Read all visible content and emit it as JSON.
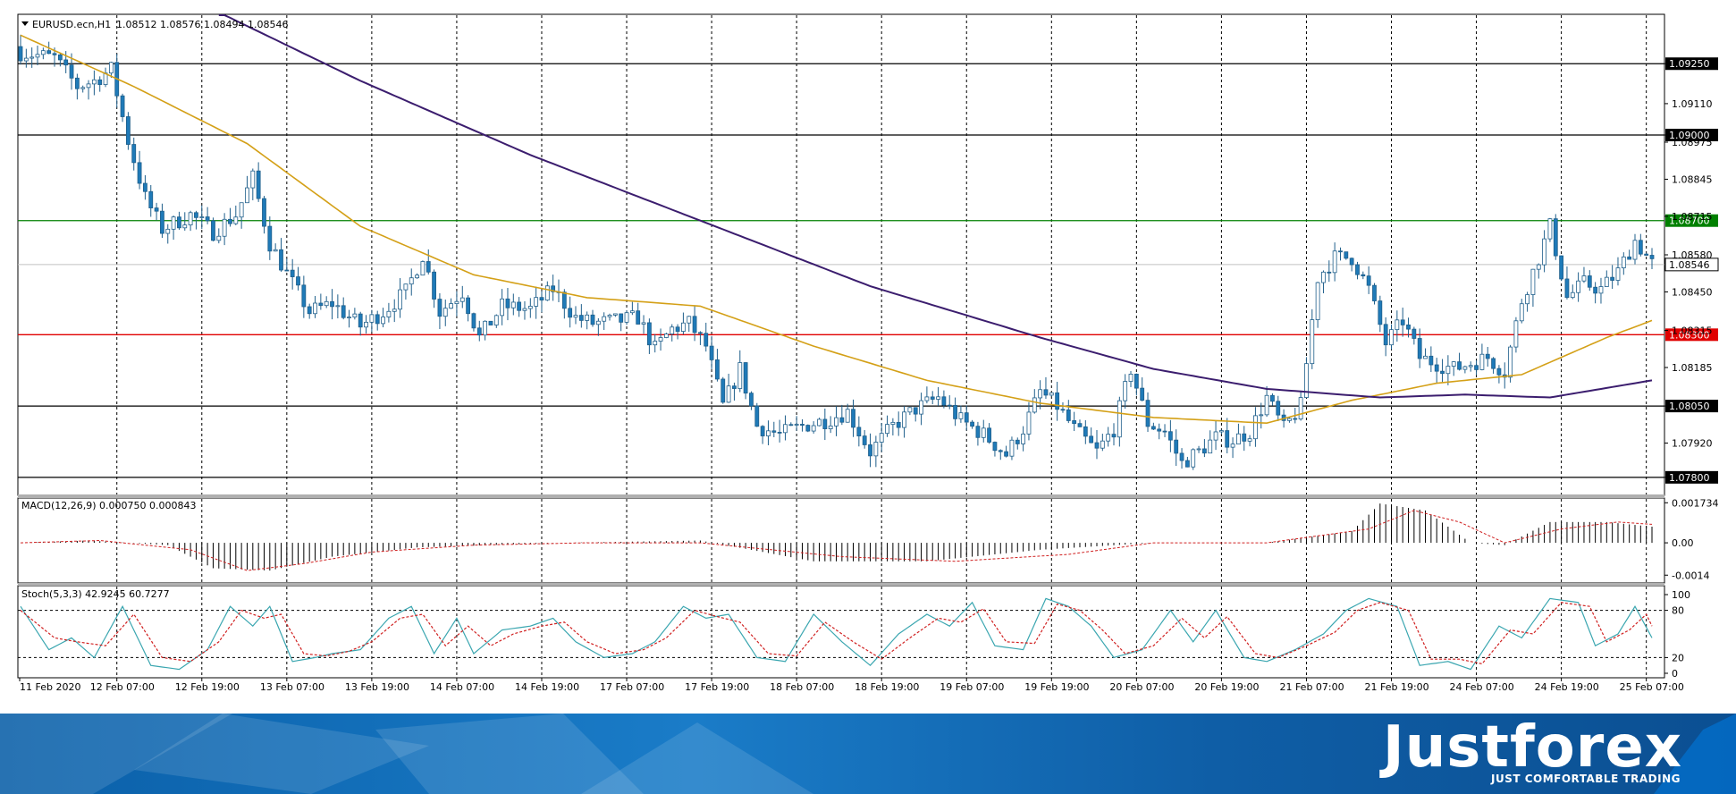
{
  "header": {
    "symbol": "EURUSD.ecn,H1",
    "ohlc": "1.08512 1.08576 1.08494 1.08546",
    "macd_label": "MACD(12,26,9) 0.000750 0.000843",
    "stoch_label": "Stoch(5,3,3) 42.9245 60.7277"
  },
  "colors": {
    "bull": "#ffffff",
    "bear": "#1f7ab8",
    "ma_fast": "#d4a017",
    "ma_slow": "#3b1d6e",
    "green_line": "#008000",
    "red_line": "#e00000",
    "black_line": "#000000",
    "stoch_main": "#3aa6b0",
    "stoch_signal": "#d02020",
    "macd_hist": "#000000",
    "macd_signal": "#d02020"
  },
  "chart_data": [
    {
      "type": "candlestick",
      "title": "EURUSD.ecn,H1",
      "price_range": [
        1.0774,
        1.0942
      ],
      "y_ticks": [
        1.0925,
        1.0911,
        1.09,
        1.08975,
        1.08845,
        1.08715,
        1.0858,
        1.0845,
        1.08315,
        1.08185,
        1.0805,
        1.0792,
        1.078
      ],
      "level_lines": [
        {
          "price": 1.0925,
          "label": "1.09250",
          "color": "black"
        },
        {
          "price": 1.09,
          "label": "1.09000",
          "color": "black"
        },
        {
          "price": 1.087,
          "label": "1.08700",
          "color": "green"
        },
        {
          "price": 1.083,
          "label": "1.08300",
          "color": "red"
        },
        {
          "price": 1.0805,
          "label": "1.08050",
          "color": "black"
        },
        {
          "price": 1.078,
          "label": "1.07800",
          "color": "black"
        }
      ],
      "current_price": {
        "price": 1.08546,
        "label": "1.08546"
      },
      "x_labels": [
        "11 Feb 2020",
        "12 Feb 07:00",
        "12 Feb 19:00",
        "13 Feb 07:00",
        "13 Feb 19:00",
        "14 Feb 07:00",
        "14 Feb 19:00",
        "17 Feb 07:00",
        "17 Feb 19:00",
        "18 Feb 07:00",
        "18 Feb 19:00",
        "19 Feb 07:00",
        "19 Feb 19:00",
        "20 Feb 07:00",
        "20 Feb 19:00",
        "21 Feb 07:00",
        "21 Feb 19:00",
        "24 Feb 07:00",
        "24 Feb 19:00",
        "25 Feb 07:00"
      ],
      "close_keypoints": [
        [
          0,
          1.0929
        ],
        [
          6,
          1.0927
        ],
        [
          10,
          1.0917
        ],
        [
          13,
          1.0919
        ],
        [
          16,
          1.0923
        ],
        [
          19,
          1.0898
        ],
        [
          22,
          1.0878
        ],
        [
          25,
          1.0867
        ],
        [
          30,
          1.0872
        ],
        [
          34,
          1.0866
        ],
        [
          38,
          1.0872
        ],
        [
          41,
          1.0885
        ],
        [
          44,
          1.0862
        ],
        [
          48,
          1.0848
        ],
        [
          51,
          1.0838
        ],
        [
          55,
          1.0841
        ],
        [
          60,
          1.0833
        ],
        [
          64,
          1.0838
        ],
        [
          68,
          1.0845
        ],
        [
          71,
          1.0858
        ],
        [
          74,
          1.0838
        ],
        [
          78,
          1.0845
        ],
        [
          81,
          1.0829
        ],
        [
          85,
          1.084
        ],
        [
          90,
          1.0839
        ],
        [
          94,
          1.0846
        ],
        [
          98,
          1.0836
        ],
        [
          101,
          1.0834
        ],
        [
          106,
          1.0835
        ],
        [
          109,
          1.0836
        ],
        [
          112,
          1.0825
        ],
        [
          115,
          1.0832
        ],
        [
          118,
          1.0834
        ],
        [
          121,
          1.0826
        ],
        [
          124,
          1.0805
        ],
        [
          127,
          1.0818
        ],
        [
          130,
          1.0798
        ],
        [
          134,
          1.0795
        ],
        [
          138,
          1.0798
        ],
        [
          142,
          1.08
        ],
        [
          146,
          1.0803
        ],
        [
          150,
          1.0789
        ],
        [
          154,
          1.0798
        ],
        [
          158,
          1.0804
        ],
        [
          162,
          1.0808
        ],
        [
          166,
          1.08
        ],
        [
          170,
          1.0795
        ],
        [
          174,
          1.0788
        ],
        [
          177,
          1.0797
        ],
        [
          180,
          1.081
        ],
        [
          183,
          1.0805
        ],
        [
          186,
          1.0797
        ],
        [
          190,
          1.0789
        ],
        [
          193,
          1.0797
        ],
        [
          196,
          1.0818
        ],
        [
          199,
          1.0799
        ],
        [
          202,
          1.0796
        ],
        [
          205,
          1.0785
        ],
        [
          208,
          1.0789
        ],
        [
          211,
          1.0794
        ],
        [
          214,
          1.0793
        ],
        [
          217,
          1.0796
        ],
        [
          220,
          1.0808
        ],
        [
          223,
          1.0797
        ],
        [
          226,
          1.0805
        ],
        [
          229,
          1.085
        ],
        [
          232,
          1.0857
        ],
        [
          235,
          1.0857
        ],
        [
          238,
          1.0846
        ],
        [
          241,
          1.0827
        ],
        [
          244,
          1.0835
        ],
        [
          247,
          1.0822
        ],
        [
          250,
          1.082
        ],
        [
          253,
          1.0818
        ],
        [
          256,
          1.082
        ],
        [
          259,
          1.0822
        ],
        [
          262,
          1.0817
        ],
        [
          265,
          1.0842
        ],
        [
          268,
          1.0857
        ],
        [
          270,
          1.0868
        ],
        [
          273,
          1.0843
        ],
        [
          276,
          1.0848
        ],
        [
          279,
          1.0846
        ],
        [
          282,
          1.0852
        ],
        [
          285,
          1.0863
        ],
        [
          288,
          1.0855
        ]
      ],
      "ma_fast": [
        [
          0,
          1.0935
        ],
        [
          20,
          1.0917
        ],
        [
          40,
          1.0897
        ],
        [
          60,
          1.0868
        ],
        [
          80,
          1.0851
        ],
        [
          100,
          1.0843
        ],
        [
          120,
          1.084
        ],
        [
          140,
          1.0826
        ],
        [
          160,
          1.0814
        ],
        [
          180,
          1.0806
        ],
        [
          200,
          1.0801
        ],
        [
          220,
          1.0799
        ],
        [
          235,
          1.0807
        ],
        [
          250,
          1.0813
        ],
        [
          265,
          1.0816
        ],
        [
          280,
          1.0829
        ],
        [
          288,
          1.0835
        ]
      ],
      "ma_slow": [
        [
          35,
          1.0943
        ],
        [
          60,
          1.0919
        ],
        [
          90,
          1.0893
        ],
        [
          120,
          1.087
        ],
        [
          150,
          1.0847
        ],
        [
          180,
          1.0829
        ],
        [
          200,
          1.0818
        ],
        [
          220,
          1.0811
        ],
        [
          240,
          1.0808
        ],
        [
          255,
          1.0809
        ],
        [
          270,
          1.0808
        ],
        [
          288,
          1.0814
        ]
      ]
    },
    {
      "type": "histogram",
      "title": "MACD(12,26,9) 0.000750 0.000843",
      "y_ticks": [
        0.001734,
        0.0,
        -0.0014
      ],
      "y_tick_labels": [
        "0.001734",
        "0.00",
        "-0.0014"
      ],
      "y_range": [
        -0.0017,
        0.0019
      ],
      "hist_keypoints": [
        [
          0,
          0.0
        ],
        [
          12,
          0.0001
        ],
        [
          26,
          -0.0001
        ],
        [
          34,
          -0.0011
        ],
        [
          44,
          -0.0012
        ],
        [
          55,
          -0.0006
        ],
        [
          70,
          -0.0002
        ],
        [
          95,
          0.0
        ],
        [
          120,
          0.0001
        ],
        [
          140,
          -0.0008
        ],
        [
          160,
          -0.0008
        ],
        [
          180,
          -0.0003
        ],
        [
          200,
          0.0
        ],
        [
          220,
          0.0
        ],
        [
          235,
          0.0005
        ],
        [
          240,
          0.0017
        ],
        [
          248,
          0.0014
        ],
        [
          256,
          0.0
        ],
        [
          262,
          -0.0001
        ],
        [
          270,
          0.0009
        ],
        [
          280,
          0.0009
        ],
        [
          288,
          0.0007
        ]
      ],
      "signal_keypoints": [
        [
          0,
          0.0
        ],
        [
          14,
          0.0001
        ],
        [
          30,
          -0.0003
        ],
        [
          40,
          -0.0012
        ],
        [
          50,
          -0.0009
        ],
        [
          62,
          -0.0004
        ],
        [
          80,
          -0.0001
        ],
        [
          100,
          0.0
        ],
        [
          120,
          0.0
        ],
        [
          145,
          -0.0006
        ],
        [
          165,
          -0.0008
        ],
        [
          185,
          -0.0005
        ],
        [
          200,
          0.0
        ],
        [
          220,
          0.0
        ],
        [
          238,
          0.0006
        ],
        [
          246,
          0.0014
        ],
        [
          254,
          0.0009
        ],
        [
          262,
          0.0
        ],
        [
          272,
          0.0006
        ],
        [
          282,
          0.0009
        ],
        [
          288,
          0.0008
        ]
      ]
    },
    {
      "type": "line",
      "title": "Stoch(5,3,3) 42.9245 60.7277",
      "y_ticks": [
        100,
        80,
        20,
        0
      ],
      "levels": [
        80,
        20
      ],
      "y_range": [
        0,
        100
      ],
      "main_keypoints": [
        [
          0,
          85
        ],
        [
          5,
          30
        ],
        [
          9,
          45
        ],
        [
          13,
          20
        ],
        [
          18,
          85
        ],
        [
          23,
          10
        ],
        [
          28,
          5
        ],
        [
          33,
          30
        ],
        [
          37,
          85
        ],
        [
          41,
          60
        ],
        [
          44,
          85
        ],
        [
          48,
          15
        ],
        [
          52,
          20
        ],
        [
          55,
          25
        ],
        [
          60,
          30
        ],
        [
          65,
          70
        ],
        [
          69,
          85
        ],
        [
          73,
          25
        ],
        [
          77,
          70
        ],
        [
          80,
          25
        ],
        [
          85,
          55
        ],
        [
          90,
          60
        ],
        [
          94,
          70
        ],
        [
          98,
          40
        ],
        [
          103,
          20
        ],
        [
          108,
          25
        ],
        [
          112,
          40
        ],
        [
          117,
          85
        ],
        [
          121,
          70
        ],
        [
          125,
          75
        ],
        [
          130,
          20
        ],
        [
          135,
          15
        ],
        [
          140,
          75
        ],
        [
          145,
          40
        ],
        [
          150,
          10
        ],
        [
          155,
          50
        ],
        [
          160,
          75
        ],
        [
          164,
          60
        ],
        [
          168,
          90
        ],
        [
          172,
          35
        ],
        [
          177,
          30
        ],
        [
          181,
          95
        ],
        [
          185,
          85
        ],
        [
          189,
          60
        ],
        [
          193,
          20
        ],
        [
          198,
          30
        ],
        [
          203,
          80
        ],
        [
          207,
          40
        ],
        [
          211,
          80
        ],
        [
          216,
          20
        ],
        [
          220,
          15
        ],
        [
          225,
          30
        ],
        [
          230,
          50
        ],
        [
          234,
          80
        ],
        [
          238,
          95
        ],
        [
          243,
          85
        ],
        [
          247,
          10
        ],
        [
          252,
          15
        ],
        [
          256,
          5
        ],
        [
          261,
          60
        ],
        [
          265,
          45
        ],
        [
          270,
          95
        ],
        [
          275,
          90
        ],
        [
          278,
          35
        ],
        [
          282,
          50
        ],
        [
          285,
          85
        ],
        [
          288,
          45
        ]
      ],
      "signal_keypoints": [
        [
          0,
          80
        ],
        [
          6,
          45
        ],
        [
          10,
          40
        ],
        [
          15,
          35
        ],
        [
          20,
          75
        ],
        [
          25,
          20
        ],
        [
          30,
          15
        ],
        [
          35,
          40
        ],
        [
          39,
          80
        ],
        [
          43,
          70
        ],
        [
          46,
          75
        ],
        [
          50,
          25
        ],
        [
          54,
          22
        ],
        [
          58,
          28
        ],
        [
          62,
          40
        ],
        [
          67,
          70
        ],
        [
          71,
          75
        ],
        [
          75,
          35
        ],
        [
          79,
          60
        ],
        [
          83,
          35
        ],
        [
          87,
          50
        ],
        [
          92,
          60
        ],
        [
          96,
          65
        ],
        [
          100,
          40
        ],
        [
          105,
          25
        ],
        [
          110,
          30
        ],
        [
          114,
          45
        ],
        [
          119,
          80
        ],
        [
          123,
          72
        ],
        [
          127,
          65
        ],
        [
          132,
          25
        ],
        [
          137,
          22
        ],
        [
          142,
          65
        ],
        [
          147,
          40
        ],
        [
          152,
          18
        ],
        [
          157,
          45
        ],
        [
          162,
          70
        ],
        [
          166,
          65
        ],
        [
          170,
          82
        ],
        [
          174,
          40
        ],
        [
          179,
          38
        ],
        [
          183,
          88
        ],
        [
          187,
          80
        ],
        [
          191,
          55
        ],
        [
          195,
          25
        ],
        [
          200,
          35
        ],
        [
          205,
          70
        ],
        [
          209,
          45
        ],
        [
          213,
          72
        ],
        [
          218,
          25
        ],
        [
          222,
          20
        ],
        [
          227,
          35
        ],
        [
          232,
          52
        ],
        [
          236,
          80
        ],
        [
          240,
          90
        ],
        [
          245,
          80
        ],
        [
          249,
          18
        ],
        [
          254,
          18
        ],
        [
          258,
          12
        ],
        [
          263,
          55
        ],
        [
          267,
          50
        ],
        [
          272,
          90
        ],
        [
          277,
          85
        ],
        [
          280,
          40
        ],
        [
          284,
          55
        ],
        [
          287,
          75
        ],
        [
          288,
          60
        ]
      ]
    }
  ]
}
